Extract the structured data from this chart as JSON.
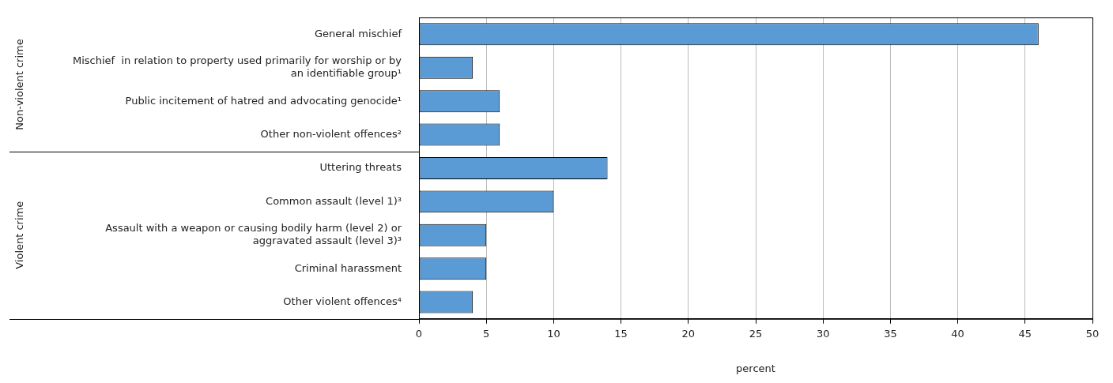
{
  "chart_data": {
    "type": "bar",
    "orientation": "horizontal",
    "categories": [
      "General mischief",
      "Mischief  in relation to property used primarily for worship or by an identifiable group¹",
      "Public incitement of hatred and advocating genocide¹",
      "Other non-violent offences²",
      "Uttering threats",
      "Common assault (level 1)³",
      "Assault with a weapon or causing bodily harm (level 2) or aggravated assault (level 3)³",
      "Criminal harassment",
      "Other violent offences⁴"
    ],
    "values": [
      46,
      4,
      6,
      6,
      14,
      10,
      5,
      5,
      4
    ],
    "color": "#5b9bd5",
    "xlim": [
      0,
      50
    ],
    "xticks": [
      0,
      5,
      10,
      15,
      20,
      25,
      30,
      35,
      40,
      45,
      50
    ],
    "xlabel": "percent",
    "grid": "x",
    "legend": false,
    "annotations": [
      "Non-violent crime",
      "Violent crime"
    ]
  }
}
